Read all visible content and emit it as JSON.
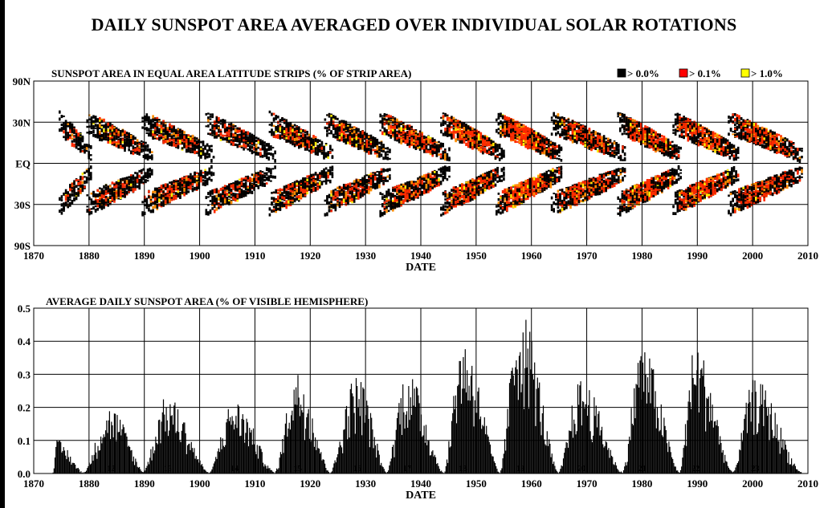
{
  "title": "DAILY SUNSPOT AREA AVERAGED OVER INDIVIDUAL SOLAR ROTATIONS",
  "chart_data": [
    {
      "type": "heatmap",
      "title": "SUNSPOT AREA IN EQUAL AREA LATITUDE STRIPS (% OF STRIP AREA)",
      "xlabel": "DATE",
      "ylabel": "",
      "xlim": [
        1870,
        2010
      ],
      "x_ticks": [
        "1870",
        "1880",
        "1890",
        "1900",
        "1910",
        "1920",
        "1930",
        "1940",
        "1950",
        "1960",
        "1970",
        "1980",
        "1990",
        "2000",
        "2010"
      ],
      "y_ticks": [
        "90N",
        "30N",
        "EQ",
        "30S",
        "90S"
      ],
      "grid": true,
      "legend_position": "top-right",
      "legend": [
        {
          "label": "> 0.0%",
          "color": "#000000"
        },
        {
          "label": "> 0.1%",
          "color": "#ff0000"
        },
        {
          "label": "> 1.0%",
          "color": "#ffff00"
        }
      ],
      "cycles": [
        {
          "start": 1874.5,
          "end": 1880.5,
          "peak_intensity": 0.35
        },
        {
          "start": 1879.5,
          "end": 1891.5,
          "peak_intensity": 0.55
        },
        {
          "start": 1889.5,
          "end": 1902.5,
          "peak_intensity": 0.6
        },
        {
          "start": 1901.0,
          "end": 1913.5,
          "peak_intensity": 0.5
        },
        {
          "start": 1912.5,
          "end": 1924.0,
          "peak_intensity": 0.65
        },
        {
          "start": 1922.5,
          "end": 1934.5,
          "peak_intensity": 0.65
        },
        {
          "start": 1932.5,
          "end": 1945.0,
          "peak_intensity": 0.75
        },
        {
          "start": 1943.5,
          "end": 1955.0,
          "peak_intensity": 0.85
        },
        {
          "start": 1953.5,
          "end": 1965.5,
          "peak_intensity": 1.0
        },
        {
          "start": 1963.5,
          "end": 1977.0,
          "peak_intensity": 0.75
        },
        {
          "start": 1975.5,
          "end": 1987.0,
          "peak_intensity": 0.9
        },
        {
          "start": 1985.5,
          "end": 1997.5,
          "peak_intensity": 0.9
        },
        {
          "start": 1995.5,
          "end": 2009.0,
          "peak_intensity": 0.8
        }
      ]
    },
    {
      "type": "bar",
      "title": "AVERAGE DAILY SUNSPOT AREA (% OF VISIBLE HEMISPHERE)",
      "xlabel": "DATE",
      "ylabel": "",
      "xlim": [
        1870,
        2010
      ],
      "ylim": [
        0,
        0.5
      ],
      "x_ticks": [
        "1870",
        "1880",
        "1890",
        "1900",
        "1910",
        "1920",
        "1930",
        "1940",
        "1950",
        "1960",
        "1970",
        "1980",
        "1990",
        "2000",
        "2010"
      ],
      "y_ticks": [
        "0.0",
        "0.1",
        "0.2",
        "0.3",
        "0.4",
        "0.5"
      ],
      "grid": true,
      "cycles": [
        {
          "label": "",
          "start": 1873.5,
          "max_year": 1874.2,
          "end": 1879.0,
          "peak": 0.1
        },
        {
          "label": "12",
          "start": 1879.0,
          "max_year": 1883.9,
          "end": 1890.0,
          "peak": 0.2
        },
        {
          "label": "13",
          "start": 1889.8,
          "max_year": 1894.1,
          "end": 1901.7,
          "peak": 0.235
        },
        {
          "label": "14",
          "start": 1901.7,
          "max_year": 1906.2,
          "end": 1913.6,
          "peak": 0.22
        },
        {
          "label": "15",
          "start": 1913.6,
          "max_year": 1917.6,
          "end": 1923.6,
          "peak": 0.31
        },
        {
          "label": "16",
          "start": 1923.6,
          "max_year": 1928.4,
          "end": 1933.8,
          "peak": 0.3
        },
        {
          "label": "17",
          "start": 1933.8,
          "max_year": 1937.4,
          "end": 1944.2,
          "peak": 0.31
        },
        {
          "label": "18",
          "start": 1944.2,
          "max_year": 1947.5,
          "end": 1954.3,
          "peak": 0.41
        },
        {
          "label": "19",
          "start": 1954.3,
          "max_year": 1957.9,
          "end": 1964.9,
          "peak": 0.505
        },
        {
          "label": "20",
          "start": 1964.9,
          "max_year": 1968.9,
          "end": 1976.5,
          "peak": 0.285
        },
        {
          "label": "21",
          "start": 1976.5,
          "max_year": 1979.9,
          "end": 1986.8,
          "peak": 0.39
        },
        {
          "label": "22",
          "start": 1986.8,
          "max_year": 1989.6,
          "end": 1996.4,
          "peak": 0.39
        },
        {
          "label": "23",
          "start": 1996.4,
          "max_year": 2000.3,
          "end": 2008.9,
          "peak": 0.285
        }
      ]
    }
  ]
}
